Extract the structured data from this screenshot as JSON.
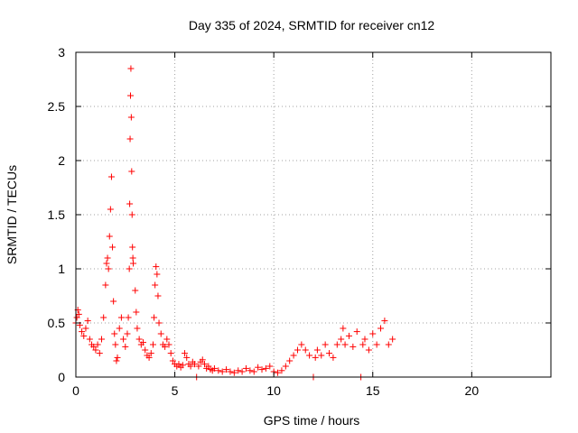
{
  "chart_data": {
    "type": "scatter",
    "title": "Day 335 of 2024, SRMTID for receiver cn12",
    "xlabel": "GPS time / hours",
    "ylabel": "SRMTID / TECUs",
    "xlim": [
      0,
      24
    ],
    "ylim": [
      0,
      3
    ],
    "xticks": [
      0,
      5,
      10,
      15,
      20
    ],
    "yticks": [
      0,
      0.5,
      1,
      1.5,
      2,
      2.5,
      3
    ],
    "xtick_labels": [
      "0",
      "5",
      "10",
      "15",
      "20"
    ],
    "ytick_labels": [
      "0",
      "0.5",
      "1",
      "1.5",
      "2",
      "2.5",
      "3"
    ],
    "grid": true,
    "marker": "+",
    "series_color": "#ff0000",
    "series": [
      {
        "name": "SRMTID",
        "points": [
          [
            0.0,
            0.5
          ],
          [
            0.05,
            0.55
          ],
          [
            0.1,
            0.62
          ],
          [
            0.15,
            0.58
          ],
          [
            0.2,
            0.48
          ],
          [
            0.3,
            0.42
          ],
          [
            0.4,
            0.38
          ],
          [
            0.5,
            0.45
          ],
          [
            0.6,
            0.52
          ],
          [
            0.7,
            0.35
          ],
          [
            0.8,
            0.3
          ],
          [
            0.9,
            0.28
          ],
          [
            1.0,
            0.25
          ],
          [
            1.1,
            0.3
          ],
          [
            1.2,
            0.22
          ],
          [
            1.3,
            0.35
          ],
          [
            1.4,
            0.55
          ],
          [
            1.5,
            0.85
          ],
          [
            1.55,
            1.05
          ],
          [
            1.6,
            1.1
          ],
          [
            1.65,
            1.0
          ],
          [
            1.7,
            1.3
          ],
          [
            1.75,
            1.55
          ],
          [
            1.8,
            1.85
          ],
          [
            1.85,
            1.2
          ],
          [
            1.9,
            0.7
          ],
          [
            1.95,
            0.4
          ],
          [
            2.0,
            0.3
          ],
          [
            2.05,
            0.15
          ],
          [
            2.1,
            0.18
          ],
          [
            2.2,
            0.45
          ],
          [
            2.3,
            0.55
          ],
          [
            2.4,
            0.35
          ],
          [
            2.5,
            0.28
          ],
          [
            2.6,
            0.4
          ],
          [
            2.65,
            0.55
          ],
          [
            2.7,
            1.0
          ],
          [
            2.72,
            1.6
          ],
          [
            2.74,
            2.2
          ],
          [
            2.76,
            2.6
          ],
          [
            2.78,
            2.85
          ],
          [
            2.8,
            2.4
          ],
          [
            2.82,
            1.9
          ],
          [
            2.84,
            1.5
          ],
          [
            2.86,
            1.2
          ],
          [
            2.88,
            1.1
          ],
          [
            2.9,
            1.05
          ],
          [
            3.0,
            0.8
          ],
          [
            3.05,
            0.6
          ],
          [
            3.1,
            0.45
          ],
          [
            3.2,
            0.35
          ],
          [
            3.3,
            0.3
          ],
          [
            3.4,
            0.32
          ],
          [
            3.5,
            0.25
          ],
          [
            3.6,
            0.2
          ],
          [
            3.7,
            0.18
          ],
          [
            3.8,
            0.22
          ],
          [
            3.9,
            0.3
          ],
          [
            3.95,
            0.55
          ],
          [
            4.0,
            0.85
          ],
          [
            4.05,
            1.02
          ],
          [
            4.1,
            0.95
          ],
          [
            4.15,
            0.75
          ],
          [
            4.2,
            0.5
          ],
          [
            4.3,
            0.4
          ],
          [
            4.4,
            0.3
          ],
          [
            4.5,
            0.28
          ],
          [
            4.6,
            0.35
          ],
          [
            4.7,
            0.3
          ],
          [
            4.8,
            0.22
          ],
          [
            4.9,
            0.15
          ],
          [
            5.0,
            0.12
          ],
          [
            5.1,
            0.1
          ],
          [
            5.2,
            0.12
          ],
          [
            5.3,
            0.09
          ],
          [
            5.4,
            0.11
          ],
          [
            5.5,
            0.22
          ],
          [
            5.6,
            0.18
          ],
          [
            5.7,
            0.12
          ],
          [
            5.8,
            0.1
          ],
          [
            5.9,
            0.14
          ],
          [
            6.0,
            0.12
          ],
          [
            6.1,
            0.0
          ],
          [
            6.2,
            0.1
          ],
          [
            6.3,
            0.14
          ],
          [
            6.4,
            0.16
          ],
          [
            6.5,
            0.12
          ],
          [
            6.6,
            0.08
          ],
          [
            6.7,
            0.1
          ],
          [
            6.8,
            0.07
          ],
          [
            6.9,
            0.06
          ],
          [
            7.0,
            0.08
          ],
          [
            7.2,
            0.06
          ],
          [
            7.4,
            0.05
          ],
          [
            7.6,
            0.07
          ],
          [
            7.8,
            0.05
          ],
          [
            8.0,
            0.04
          ],
          [
            8.2,
            0.06
          ],
          [
            8.4,
            0.05
          ],
          [
            8.6,
            0.08
          ],
          [
            8.8,
            0.06
          ],
          [
            9.0,
            0.05
          ],
          [
            9.2,
            0.09
          ],
          [
            9.4,
            0.07
          ],
          [
            9.6,
            0.08
          ],
          [
            9.8,
            0.1
          ],
          [
            10.0,
            0.05
          ],
          [
            10.2,
            0.04
          ],
          [
            10.4,
            0.06
          ],
          [
            10.6,
            0.1
          ],
          [
            10.8,
            0.15
          ],
          [
            11.0,
            0.2
          ],
          [
            11.2,
            0.25
          ],
          [
            11.4,
            0.3
          ],
          [
            11.6,
            0.25
          ],
          [
            11.8,
            0.2
          ],
          [
            12.0,
            0.0
          ],
          [
            12.1,
            0.18
          ],
          [
            12.2,
            0.25
          ],
          [
            12.4,
            0.2
          ],
          [
            12.6,
            0.3
          ],
          [
            12.8,
            0.22
          ],
          [
            13.0,
            0.18
          ],
          [
            13.2,
            0.3
          ],
          [
            13.4,
            0.35
          ],
          [
            13.5,
            0.45
          ],
          [
            13.6,
            0.3
          ],
          [
            13.8,
            0.38
          ],
          [
            14.0,
            0.28
          ],
          [
            14.2,
            0.42
          ],
          [
            14.4,
            0.0
          ],
          [
            14.5,
            0.3
          ],
          [
            14.6,
            0.35
          ],
          [
            14.8,
            0.25
          ],
          [
            15.0,
            0.4
          ],
          [
            15.2,
            0.3
          ],
          [
            15.4,
            0.45
          ],
          [
            15.6,
            0.52
          ],
          [
            15.8,
            0.3
          ],
          [
            16.0,
            0.35
          ]
        ]
      }
    ]
  }
}
